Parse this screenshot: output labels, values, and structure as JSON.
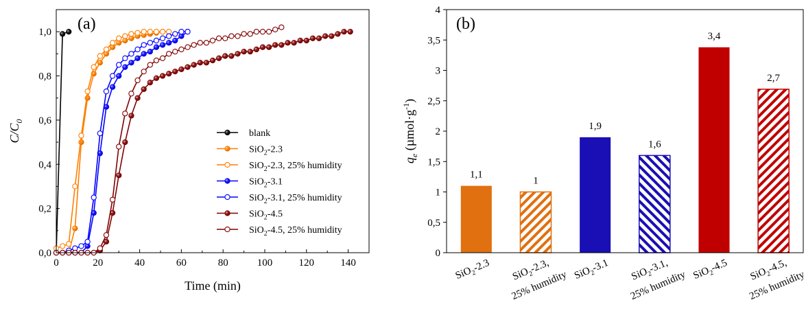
{
  "chart_data": [
    {
      "type": "line",
      "panel_label": "(a)",
      "xlabel": "Time (min)",
      "ylabel": "C/C",
      "ylabel_sub": "0",
      "xlim": [
        0,
        150
      ],
      "ylim": [
        0,
        1.1
      ],
      "xticks": [
        "0",
        "20",
        "40",
        "60",
        "80",
        "100",
        "120",
        "140"
      ],
      "yticks": [
        "0,0",
        "0,2",
        "0,4",
        "0,6",
        "0,8",
        "1,0"
      ],
      "legend_position": "bottom-right",
      "series": [
        {
          "name": "blank",
          "legend": {
            "pre": "blank",
            "sub": "",
            "post": ""
          },
          "color": "#000000",
          "filled": true,
          "x": [
            0,
            3,
            6
          ],
          "y": [
            0.0,
            0.99,
            1.0
          ]
        },
        {
          "name": "SiO2-2.3",
          "legend": {
            "pre": "SiO",
            "sub": "2",
            "post": "-2.3"
          },
          "color": "#ff7f00",
          "filled": true,
          "x": [
            0,
            3,
            6,
            9,
            12,
            15,
            18,
            21,
            24,
            27,
            30,
            33,
            36,
            39,
            42,
            45,
            48,
            51
          ],
          "y": [
            0.0,
            0.0,
            0.0,
            0.11,
            0.5,
            0.7,
            0.81,
            0.86,
            0.9,
            0.93,
            0.95,
            0.96,
            0.97,
            0.98,
            0.985,
            0.99,
            0.995,
            1.0
          ]
        },
        {
          "name": "SiO2-2.3, 25% humidity",
          "legend": {
            "pre": "SiO",
            "sub": "2",
            "post": "-2.3, 25% humidity"
          },
          "color": "#ff7f00",
          "filled": false,
          "x": [
            0,
            3,
            6,
            9,
            12,
            15,
            18,
            21,
            24,
            27,
            30,
            33,
            36,
            39,
            42,
            45,
            48,
            51,
            54
          ],
          "y": [
            0.02,
            0.03,
            0.04,
            0.3,
            0.53,
            0.73,
            0.84,
            0.89,
            0.92,
            0.95,
            0.97,
            0.98,
            0.99,
            0.995,
            1.0,
            1.0,
            1.0,
            1.0,
            1.0
          ]
        },
        {
          "name": "SiO2-3.1",
          "legend": {
            "pre": "SiO",
            "sub": "2",
            "post": "-3.1"
          },
          "color": "#0000ff",
          "filled": true,
          "x": [
            0,
            3,
            6,
            9,
            12,
            15,
            18,
            21,
            24,
            27,
            30,
            33,
            36,
            39,
            42,
            45,
            48,
            51,
            54,
            57,
            60,
            63
          ],
          "y": [
            0.0,
            0.0,
            0.0,
            0.0,
            0.0,
            0.03,
            0.18,
            0.45,
            0.66,
            0.75,
            0.8,
            0.84,
            0.86,
            0.88,
            0.9,
            0.91,
            0.93,
            0.94,
            0.95,
            0.96,
            0.98,
            1.0
          ]
        },
        {
          "name": "SiO2-3.1, 25% humidity",
          "legend": {
            "pre": "SiO",
            "sub": "2",
            "post": "-3.1, 25% humidity"
          },
          "color": "#0000ff",
          "filled": false,
          "x": [
            0,
            3,
            6,
            9,
            12,
            15,
            18,
            21,
            24,
            27,
            30,
            33,
            36,
            39,
            42,
            45,
            48,
            51,
            54,
            57,
            60,
            63
          ],
          "y": [
            0.0,
            0.0,
            0.01,
            0.02,
            0.03,
            0.05,
            0.25,
            0.54,
            0.73,
            0.8,
            0.85,
            0.88,
            0.9,
            0.92,
            0.94,
            0.95,
            0.96,
            0.97,
            0.98,
            0.99,
            1.0,
            1.0
          ]
        },
        {
          "name": "SiO2-4.5",
          "legend": {
            "pre": "SiO",
            "sub": "2",
            "post": "-4.5"
          },
          "color": "#800000",
          "filled": true,
          "x": [
            0,
            3,
            6,
            9,
            12,
            15,
            18,
            21,
            24,
            27,
            30,
            33,
            36,
            39,
            42,
            45,
            48,
            51,
            54,
            57,
            60,
            63,
            66,
            69,
            72,
            75,
            78,
            81,
            84,
            87,
            90,
            93,
            96,
            99,
            102,
            105,
            108,
            111,
            114,
            117,
            120,
            123,
            126,
            129,
            132,
            135,
            138,
            141
          ],
          "y": [
            0.0,
            0.0,
            0.0,
            0.0,
            0.0,
            0.0,
            0.0,
            0.01,
            0.05,
            0.18,
            0.35,
            0.5,
            0.62,
            0.7,
            0.74,
            0.77,
            0.79,
            0.8,
            0.81,
            0.82,
            0.83,
            0.84,
            0.85,
            0.86,
            0.86,
            0.87,
            0.88,
            0.89,
            0.89,
            0.9,
            0.91,
            0.91,
            0.92,
            0.93,
            0.93,
            0.94,
            0.94,
            0.95,
            0.95,
            0.96,
            0.96,
            0.97,
            0.97,
            0.98,
            0.98,
            0.99,
            1.0,
            1.0
          ]
        },
        {
          "name": "SiO2-4.5, 25% humidity",
          "legend": {
            "pre": "SiO",
            "sub": "2",
            "post": "-4.5, 25% humidity"
          },
          "color": "#800000",
          "filled": false,
          "x": [
            0,
            3,
            6,
            9,
            12,
            15,
            18,
            21,
            24,
            27,
            30,
            33,
            36,
            39,
            42,
            45,
            48,
            51,
            54,
            57,
            60,
            63,
            66,
            69,
            72,
            75,
            78,
            81,
            84,
            87,
            90,
            93,
            96,
            99,
            102,
            105,
            108
          ],
          "y": [
            0.0,
            0.0,
            0.0,
            0.0,
            0.0,
            0.0,
            0.0,
            0.02,
            0.08,
            0.24,
            0.48,
            0.63,
            0.72,
            0.78,
            0.82,
            0.85,
            0.87,
            0.88,
            0.9,
            0.91,
            0.92,
            0.93,
            0.94,
            0.95,
            0.95,
            0.96,
            0.97,
            0.97,
            0.98,
            0.98,
            0.99,
            0.99,
            1.0,
            1.0,
            1.0,
            1.01,
            1.02
          ]
        }
      ]
    },
    {
      "type": "bar",
      "panel_label": "(b)",
      "ylabel_var": "q",
      "ylabel_sub": "e",
      "ylabel_units": " (µmol·g",
      "ylabel_sup": "-1",
      "ylabel_close": ")",
      "ylim": [
        0,
        4
      ],
      "yticks": [
        "0",
        "0,5",
        "1",
        "1,5",
        "2",
        "2,5",
        "3",
        "3,5",
        "4"
      ],
      "categories": [
        {
          "pre": "SiO",
          "sub": "2",
          "post": "-2.3",
          "line2": ""
        },
        {
          "pre": "SiO",
          "sub": "2",
          "post": "-2.3,",
          "line2": "25% humidity"
        },
        {
          "pre": "SiO",
          "sub": "2",
          "post": "-3.1",
          "line2": ""
        },
        {
          "pre": "SiO",
          "sub": "2",
          "post": "-3.1,",
          "line2": "25% humidity"
        },
        {
          "pre": "SiO",
          "sub": "2",
          "post": "-4.5",
          "line2": ""
        },
        {
          "pre": "SiO",
          "sub": "2",
          "post": "-4.5,",
          "line2": "25% humidity"
        }
      ],
      "values": [
        1.1,
        1.0,
        1.9,
        1.6,
        3.38,
        2.69
      ],
      "value_labels": [
        "1,1",
        "1",
        "1,9",
        "1,6",
        "3,4",
        "2,7"
      ],
      "colors": [
        "#e07010",
        "#e07010",
        "#1a0fb4",
        "#1a0fb4",
        "#c00000",
        "#c00000"
      ],
      "hatched": [
        false,
        true,
        false,
        true,
        false,
        true
      ]
    }
  ]
}
